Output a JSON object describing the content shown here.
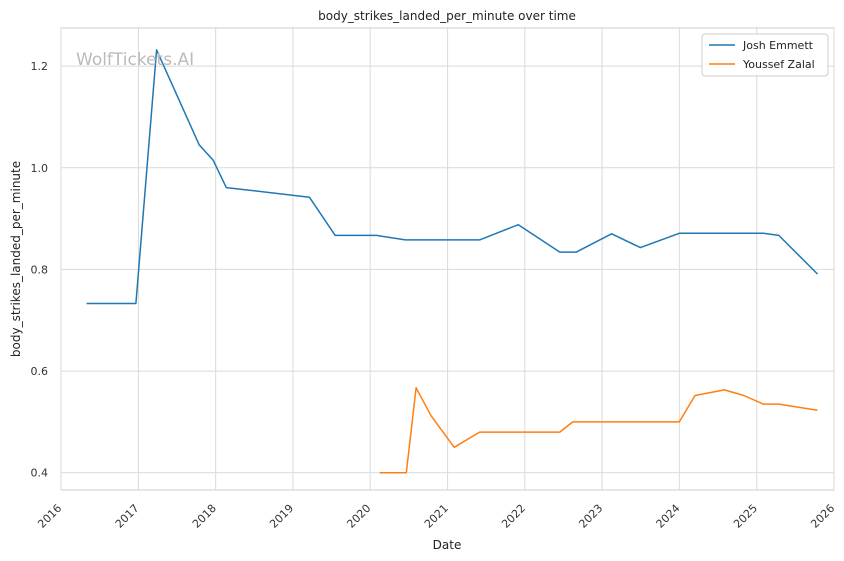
{
  "chart_data": {
    "type": "line",
    "title": "body_strikes_landed_per_minute over time",
    "xlabel": "Date",
    "ylabel": "body_strikes_landed_per_minute",
    "watermark": "WolfTickets.AI",
    "x_ticks": [
      "2016",
      "2017",
      "2018",
      "2019",
      "2020",
      "2021",
      "2022",
      "2023",
      "2024",
      "2025",
      "2026"
    ],
    "y_ticks": [
      "0.4",
      "0.6",
      "0.8",
      "1.0",
      "1.2"
    ],
    "xlim": [
      "2016-01-01",
      "2026-01-01"
    ],
    "ylim": [
      0.366,
      1.275
    ],
    "grid": true,
    "legend_position": "top-right",
    "series": [
      {
        "name": "Josh Emmett",
        "color": "#1f77b4",
        "points": [
          [
            "2016-05-01",
            0.733
          ],
          [
            "2016-12-20",
            0.733
          ],
          [
            "2017-03-28",
            1.232
          ],
          [
            "2017-10-15",
            1.045
          ],
          [
            "2017-12-20",
            1.015
          ],
          [
            "2018-02-20",
            0.961
          ],
          [
            "2019-03-20",
            0.942
          ],
          [
            "2019-07-20",
            0.867
          ],
          [
            "2020-02-01",
            0.867
          ],
          [
            "2020-06-15",
            0.858
          ],
          [
            "2021-06-01",
            0.858
          ],
          [
            "2021-12-01",
            0.888
          ],
          [
            "2022-06-15",
            0.834
          ],
          [
            "2022-09-01",
            0.834
          ],
          [
            "2023-02-15",
            0.87
          ],
          [
            "2023-07-01",
            0.843
          ],
          [
            "2024-01-01",
            0.871
          ],
          [
            "2025-02-01",
            0.871
          ],
          [
            "2025-04-15",
            0.867
          ],
          [
            "2025-10-15",
            0.791
          ]
        ]
      },
      {
        "name": "Youssef Zalal",
        "color": "#ff7f0e",
        "points": [
          [
            "2020-02-15",
            0.4
          ],
          [
            "2020-06-20",
            0.4
          ],
          [
            "2020-08-05",
            0.567
          ],
          [
            "2020-10-15",
            0.512
          ],
          [
            "2021-02-01",
            0.45
          ],
          [
            "2021-06-01",
            0.48
          ],
          [
            "2022-06-15",
            0.48
          ],
          [
            "2022-08-15",
            0.5
          ],
          [
            "2024-01-01",
            0.5
          ],
          [
            "2024-03-15",
            0.552
          ],
          [
            "2024-08-01",
            0.563
          ],
          [
            "2024-11-01",
            0.552
          ],
          [
            "2025-02-01",
            0.535
          ],
          [
            "2025-04-15",
            0.535
          ],
          [
            "2025-10-15",
            0.523
          ]
        ]
      }
    ]
  }
}
